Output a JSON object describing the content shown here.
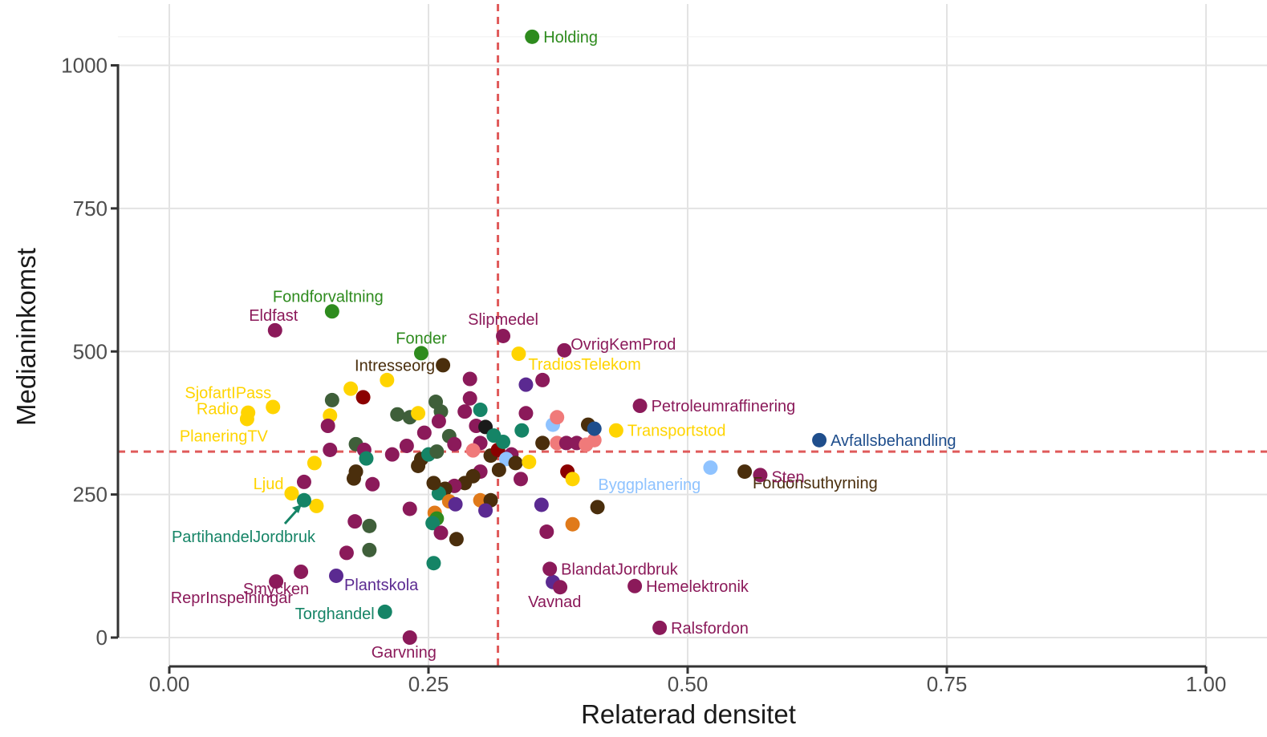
{
  "chart_data": {
    "type": "scatter",
    "xlabel": "Relaterad densitet",
    "ylabel": "Medianinkomst",
    "xlim": [
      -0.05,
      1.05
    ],
    "ylim": [
      -20,
      1080
    ],
    "x_ticks": [
      {
        "value": 0.0,
        "label": "0.00"
      },
      {
        "value": 0.25,
        "label": "0.25"
      },
      {
        "value": 0.5,
        "label": "0.50"
      },
      {
        "value": 0.75,
        "label": "0.75"
      },
      {
        "value": 1.0,
        "label": "1.00"
      }
    ],
    "y_ticks": [
      {
        "value": 0,
        "label": "0"
      },
      {
        "value": 250,
        "label": "250"
      },
      {
        "value": 500,
        "label": "500"
      },
      {
        "value": 750,
        "label": "750"
      },
      {
        "value": 1000,
        "label": "1000"
      }
    ],
    "grid": true,
    "reference_lines": {
      "x": 0.317,
      "y": 325,
      "color": "#e05a5a",
      "style": "dashed"
    },
    "colors": {
      "green": "#2e8b1e",
      "darkgreen": "#3f5f3a",
      "magenta": "#8b1a5a",
      "gold": "#ffd400",
      "darkbrown": "#4a2e0c",
      "teal": "#158466",
      "purple": "#5b2a91",
      "navy": "#1f4e8c",
      "lightblue": "#8fc3ff",
      "pink": "#f07a7a",
      "darkred": "#8b0000",
      "orange": "#e07a1a",
      "black": "#1a1a1a"
    },
    "labeled_points": [
      {
        "label": "Holding",
        "x": 0.35,
        "y": 1050,
        "color": "green"
      },
      {
        "label": "Fondforvaltning",
        "x": 0.157,
        "y": 570,
        "color": "green"
      },
      {
        "label": "Eldfast",
        "x": 0.102,
        "y": 537,
        "color": "magenta"
      },
      {
        "label": "Fonder",
        "x": 0.243,
        "y": 497,
        "color": "green"
      },
      {
        "label": "Slipmedel",
        "x": 0.322,
        "y": 527,
        "color": "magenta"
      },
      {
        "label": "OvrigKemProd",
        "x": 0.381,
        "y": 502,
        "color": "magenta"
      },
      {
        "label": "Intresseorg",
        "x": 0.264,
        "y": 476,
        "color": "darkbrown"
      },
      {
        "label": "TradiosTelekom",
        "x": 0.337,
        "y": 496,
        "color": "gold"
      },
      {
        "label": "SjofartIPass",
        "x": 0.1,
        "y": 403,
        "color": "gold"
      },
      {
        "label": "Radio",
        "x": 0.076,
        "y": 393,
        "color": "gold"
      },
      {
        "label": "PlaneringTV",
        "x": 0.075,
        "y": 382,
        "color": "gold"
      },
      {
        "label": "Petroleumraffinering",
        "x": 0.454,
        "y": 405,
        "color": "magenta"
      },
      {
        "label": "Transportstod",
        "x": 0.431,
        "y": 362,
        "color": "gold"
      },
      {
        "label": "Avfallsbehandling",
        "x": 0.627,
        "y": 345,
        "color": "navy"
      },
      {
        "label": "Fordonsuthyrning",
        "x": 0.555,
        "y": 290,
        "color": "darkbrown"
      },
      {
        "label": "Sten",
        "x": 0.57,
        "y": 284,
        "color": "magenta"
      },
      {
        "label": "Byggplanering",
        "x": 0.522,
        "y": 297,
        "color": "lightblue"
      },
      {
        "label": "Ljud",
        "x": 0.118,
        "y": 252,
        "color": "gold"
      },
      {
        "label": "PartihandelJordbruk",
        "x": 0.13,
        "y": 240,
        "color": "teal"
      },
      {
        "label": "Smycken",
        "x": 0.127,
        "y": 115,
        "color": "magenta"
      },
      {
        "label": "BlandatJordbruk",
        "x": 0.367,
        "y": 120,
        "color": "magenta"
      },
      {
        "label": "Plantskola",
        "x": 0.161,
        "y": 108,
        "color": "purple"
      },
      {
        "label": "ReprInspelningar",
        "x": 0.103,
        "y": 98,
        "color": "magenta"
      },
      {
        "label": "Hemelektronik",
        "x": 0.449,
        "y": 90,
        "color": "magenta"
      },
      {
        "label": "Vavnad",
        "x": 0.377,
        "y": 88,
        "color": "magenta"
      },
      {
        "label": "Torghandel",
        "x": 0.208,
        "y": 45,
        "color": "teal"
      },
      {
        "label": "Ralsfordon",
        "x": 0.473,
        "y": 17,
        "color": "magenta"
      },
      {
        "label": "Garvning",
        "x": 0.232,
        "y": 0,
        "color": "magenta"
      }
    ],
    "unlabeled_points": [
      [
        0.157,
        415,
        "darkgreen"
      ],
      [
        0.175,
        435,
        "gold"
      ],
      [
        0.187,
        420,
        "darkred"
      ],
      [
        0.21,
        450,
        "gold"
      ],
      [
        0.155,
        388,
        "gold"
      ],
      [
        0.153,
        370,
        "magenta"
      ],
      [
        0.155,
        328,
        "magenta"
      ],
      [
        0.18,
        338,
        "darkgreen"
      ],
      [
        0.188,
        328,
        "magenta"
      ],
      [
        0.19,
        313,
        "teal"
      ],
      [
        0.14,
        305,
        "gold"
      ],
      [
        0.18,
        290,
        "darkbrown"
      ],
      [
        0.178,
        278,
        "darkbrown"
      ],
      [
        0.196,
        268,
        "magenta"
      ],
      [
        0.13,
        272,
        "magenta"
      ],
      [
        0.142,
        230,
        "gold"
      ],
      [
        0.179,
        203,
        "magenta"
      ],
      [
        0.193,
        195,
        "darkgreen"
      ],
      [
        0.171,
        148,
        "magenta"
      ],
      [
        0.193,
        153,
        "darkgreen"
      ],
      [
        0.215,
        320,
        "magenta"
      ],
      [
        0.229,
        335,
        "magenta"
      ],
      [
        0.22,
        390,
        "darkgreen"
      ],
      [
        0.232,
        385,
        "darkgreen"
      ],
      [
        0.24,
        392,
        "gold"
      ],
      [
        0.246,
        358,
        "magenta"
      ],
      [
        0.257,
        412,
        "darkgreen"
      ],
      [
        0.262,
        395,
        "darkgreen"
      ],
      [
        0.26,
        378,
        "magenta"
      ],
      [
        0.27,
        352,
        "darkgreen"
      ],
      [
        0.275,
        338,
        "magenta"
      ],
      [
        0.285,
        395,
        "magenta"
      ],
      [
        0.29,
        452,
        "magenta"
      ],
      [
        0.29,
        418,
        "magenta"
      ],
      [
        0.3,
        398,
        "teal"
      ],
      [
        0.296,
        370,
        "magenta"
      ],
      [
        0.305,
        368,
        "black"
      ],
      [
        0.313,
        353,
        "teal"
      ],
      [
        0.3,
        340,
        "magenta"
      ],
      [
        0.293,
        327,
        "pink"
      ],
      [
        0.31,
        318,
        "darkbrown"
      ],
      [
        0.317,
        328,
        "darkred"
      ],
      [
        0.322,
        342,
        "teal"
      ],
      [
        0.33,
        320,
        "magenta"
      ],
      [
        0.325,
        312,
        "lightblue"
      ],
      [
        0.334,
        305,
        "darkbrown"
      ],
      [
        0.318,
        293,
        "darkbrown"
      ],
      [
        0.3,
        290,
        "magenta"
      ],
      [
        0.293,
        282,
        "darkbrown"
      ],
      [
        0.285,
        270,
        "darkbrown"
      ],
      [
        0.275,
        265,
        "magenta"
      ],
      [
        0.266,
        260,
        "darkbrown"
      ],
      [
        0.26,
        252,
        "teal"
      ],
      [
        0.27,
        238,
        "orange"
      ],
      [
        0.276,
        233,
        "purple"
      ],
      [
        0.256,
        218,
        "orange"
      ],
      [
        0.258,
        208,
        "green"
      ],
      [
        0.254,
        200,
        "teal"
      ],
      [
        0.262,
        183,
        "magenta"
      ],
      [
        0.277,
        172,
        "darkbrown"
      ],
      [
        0.255,
        130,
        "teal"
      ],
      [
        0.232,
        225,
        "magenta"
      ],
      [
        0.24,
        300,
        "darkbrown"
      ],
      [
        0.243,
        312,
        "darkbrown"
      ],
      [
        0.25,
        320,
        "teal"
      ],
      [
        0.258,
        325,
        "darkgreen"
      ],
      [
        0.255,
        270,
        "darkbrown"
      ],
      [
        0.3,
        240,
        "orange"
      ],
      [
        0.31,
        240,
        "darkbrown"
      ],
      [
        0.305,
        222,
        "purple"
      ],
      [
        0.344,
        392,
        "magenta"
      ],
      [
        0.344,
        442,
        "purple"
      ],
      [
        0.36,
        450,
        "magenta"
      ],
      [
        0.34,
        362,
        "teal"
      ],
      [
        0.36,
        340,
        "darkbrown"
      ],
      [
        0.37,
        372,
        "lightblue"
      ],
      [
        0.374,
        385,
        "pink"
      ],
      [
        0.374,
        340,
        "pink"
      ],
      [
        0.383,
        340,
        "magenta"
      ],
      [
        0.393,
        340,
        "magenta"
      ],
      [
        0.402,
        337,
        "pink"
      ],
      [
        0.41,
        345,
        "pink"
      ],
      [
        0.404,
        372,
        "darkbrown"
      ],
      [
        0.41,
        365,
        "navy"
      ],
      [
        0.347,
        307,
        "gold"
      ],
      [
        0.384,
        290,
        "darkred"
      ],
      [
        0.389,
        277,
        "gold"
      ],
      [
        0.339,
        277,
        "magenta"
      ],
      [
        0.359,
        232,
        "purple"
      ],
      [
        0.413,
        228,
        "darkbrown"
      ],
      [
        0.389,
        198,
        "orange"
      ],
      [
        0.364,
        185,
        "magenta"
      ],
      [
        0.37,
        97,
        "purple"
      ]
    ]
  }
}
